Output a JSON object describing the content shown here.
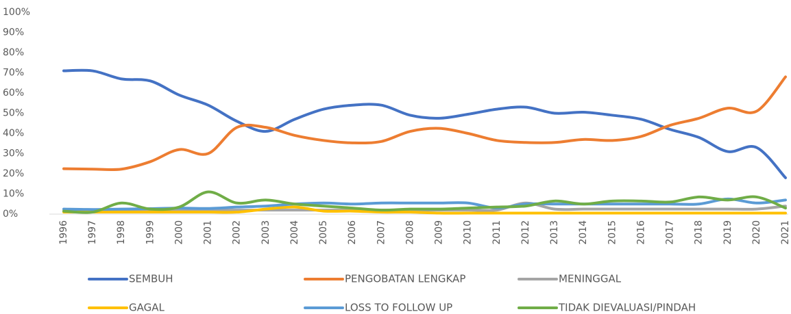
{
  "chart_data": {
    "type": "line",
    "categories": [
      "1996",
      "1997",
      "1998",
      "1999",
      "2000",
      "2001",
      "2002",
      "2003",
      "2004",
      "2005",
      "2006",
      "2007",
      "2008",
      "2009",
      "2010",
      "2011",
      "2012",
      "2013",
      "2014",
      "2015",
      "2016",
      "2017",
      "2018",
      "2019",
      "2020",
      "2021"
    ],
    "ylim": [
      0,
      100
    ],
    "yticks": [
      {
        "value": 0,
        "label": "0%"
      },
      {
        "value": 10,
        "label": "10%"
      },
      {
        "value": 20,
        "label": "20%"
      },
      {
        "value": 30,
        "label": "30%"
      },
      {
        "value": 40,
        "label": "40%"
      },
      {
        "value": 50,
        "label": "50%"
      },
      {
        "value": 60,
        "label": "60%"
      },
      {
        "value": 70,
        "label": "70%"
      },
      {
        "value": 80,
        "label": "80%"
      },
      {
        "value": 90,
        "label": "90%"
      },
      {
        "value": 100,
        "label": "100%"
      }
    ],
    "smooth": true,
    "legend": "bottom",
    "series": [
      {
        "name": "SEMBUH",
        "color": "#4472c4",
        "values": [
          71,
          71,
          67,
          66,
          59,
          54,
          46,
          41,
          47,
          52,
          54,
          54,
          49,
          47.5,
          49.5,
          52,
          53,
          50,
          50.5,
          49,
          47,
          42,
          38,
          31,
          33,
          18
        ]
      },
      {
        "name": "PENGOBATAN LENGKAP",
        "color": "#ed7d31",
        "values": [
          22.5,
          22.3,
          22.3,
          26,
          32,
          30,
          43,
          43,
          39,
          36.5,
          35.3,
          36,
          41,
          42.5,
          40,
          36.5,
          35.5,
          35.5,
          37,
          36.5,
          38.5,
          44,
          47.5,
          52.5,
          51,
          68
        ]
      },
      {
        "name": "MENINGGAL",
        "color": "#a5a5a5",
        "values": [
          1.5,
          1.5,
          2,
          2,
          2,
          2,
          2,
          2,
          2,
          2,
          2,
          2,
          2,
          2,
          2,
          2,
          5.5,
          2.5,
          2.5,
          2.5,
          2.5,
          2.5,
          2.5,
          2.5,
          2.5,
          4
        ]
      },
      {
        "name": "GAGAL",
        "color": "#ffc000",
        "values": [
          1,
          1,
          1,
          1,
          1,
          1,
          1,
          2.5,
          3.5,
          1.5,
          1.5,
          1,
          1,
          0.5,
          0.5,
          0.5,
          0.5,
          0.5,
          0.5,
          0.5,
          0.5,
          0.5,
          0.5,
          0.5,
          0.5,
          0.5
        ]
      },
      {
        "name": "LOSS TO FOLLOW UP",
        "color": "#5b9bd5",
        "values": [
          2.5,
          2.3,
          2.5,
          2.7,
          3,
          2.8,
          3.5,
          4,
          5,
          5.5,
          5,
          5.5,
          5.5,
          5.5,
          5.5,
          3,
          5,
          5,
          5,
          5,
          5,
          5,
          5,
          7.5,
          5.5,
          7
        ]
      },
      {
        "name": "TIDAK DIEVALUASI/PINDAH",
        "color": "#70ad47",
        "values": [
          1.5,
          1,
          5.5,
          2.5,
          3.5,
          11,
          5.5,
          7,
          5,
          4,
          3,
          2,
          2.5,
          2.5,
          3,
          3.5,
          4,
          6.5,
          5,
          6.5,
          6.5,
          6,
          8.5,
          7,
          8.5,
          3
        ]
      }
    ]
  }
}
